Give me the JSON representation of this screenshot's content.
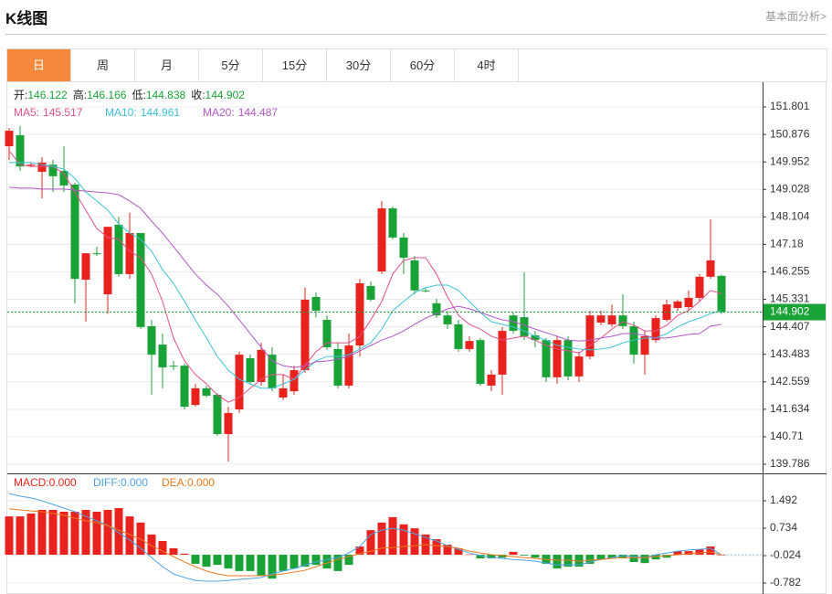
{
  "header": {
    "title": "K线图",
    "link": "基本面分析>"
  },
  "tabs": {
    "items": [
      "日",
      "周",
      "月",
      "5分",
      "15分",
      "30分",
      "60分",
      "4时"
    ],
    "active": 0
  },
  "chart_data": [
    {
      "type": "candlestick",
      "ohlc_labels": [
        "开:",
        "高:",
        "低:",
        "收:"
      ],
      "up_color": "#e8231d",
      "down_color": "#19a337",
      "candles": [
        [
          150.48,
          151.09,
          150.02,
          151.0
        ],
        [
          150.85,
          151.16,
          149.65,
          149.8
        ],
        [
          149.83,
          149.93,
          149.77,
          149.86
        ],
        [
          149.62,
          150.11,
          148.73,
          149.93
        ],
        [
          149.86,
          150.02,
          148.94,
          149.47
        ],
        [
          149.65,
          150.48,
          148.94,
          149.16
        ],
        [
          149.19,
          149.25,
          145.2,
          146.02
        ],
        [
          145.99,
          146.88,
          144.58,
          146.88
        ],
        [
          146.88,
          147.1,
          146.79,
          146.85
        ],
        [
          145.5,
          147.77,
          144.85,
          147.77
        ],
        [
          147.84,
          148.11,
          146.09,
          146.18
        ],
        [
          146.18,
          148.24,
          146.02,
          147.56
        ],
        [
          147.56,
          147.56,
          144.33,
          144.4
        ],
        [
          144.43,
          144.64,
          142.12,
          143.47
        ],
        [
          143.81,
          144.18,
          142.34,
          143.04
        ],
        [
          143.1,
          143.26,
          142.95,
          143.07
        ],
        [
          143.1,
          143.17,
          141.63,
          141.72
        ],
        [
          141.78,
          142.49,
          141.72,
          142.34
        ],
        [
          142.34,
          142.43,
          142.03,
          142.09
        ],
        [
          142.12,
          142.18,
          140.74,
          140.8
        ],
        [
          140.8,
          141.72,
          139.88,
          141.51
        ],
        [
          141.63,
          143.57,
          141.51,
          143.47
        ],
        [
          143.35,
          143.47,
          142.49,
          142.55
        ],
        [
          142.55,
          143.87,
          142.43,
          143.63
        ],
        [
          143.47,
          143.72,
          142.24,
          142.34
        ],
        [
          142.03,
          142.8,
          141.94,
          142.34
        ],
        [
          142.24,
          143.1,
          142.12,
          142.95
        ],
        [
          142.95,
          145.72,
          142.86,
          145.32
        ],
        [
          145.41,
          145.56,
          144.73,
          144.95
        ],
        [
          144.64,
          144.79,
          143.63,
          143.72
        ],
        [
          143.66,
          143.87,
          142.34,
          142.43
        ],
        [
          142.43,
          144.18,
          142.34,
          143.78
        ],
        [
          143.78,
          146.02,
          143.41,
          145.87
        ],
        [
          145.78,
          145.93,
          145.26,
          145.32
        ],
        [
          146.27,
          148.64,
          146.18,
          148.39
        ],
        [
          148.39,
          148.45,
          147.35,
          147.41
        ],
        [
          147.41,
          147.56,
          146.18,
          146.73
        ],
        [
          146.64,
          146.79,
          145.5,
          145.63
        ],
        [
          145.63,
          145.72,
          145.56,
          145.6
        ],
        [
          145.2,
          145.35,
          144.7,
          144.79
        ],
        [
          144.79,
          144.95,
          144.33,
          144.49
        ],
        [
          144.49,
          144.64,
          143.57,
          143.66
        ],
        [
          143.66,
          144.09,
          143.57,
          143.93
        ],
        [
          143.96,
          144.03,
          142.43,
          142.49
        ],
        [
          142.43,
          142.95,
          142.24,
          142.8
        ],
        [
          142.8,
          144.4,
          142.12,
          144.27
        ],
        [
          144.79,
          144.89,
          144.18,
          144.27
        ],
        [
          144.73,
          146.24,
          143.96,
          144.09
        ],
        [
          144.12,
          144.27,
          143.72,
          143.96
        ],
        [
          143.96,
          144.03,
          142.55,
          142.71
        ],
        [
          142.71,
          144.09,
          142.49,
          143.96
        ],
        [
          143.96,
          144.09,
          142.61,
          142.74
        ],
        [
          142.74,
          143.57,
          142.55,
          143.41
        ],
        [
          143.41,
          144.95,
          143.32,
          144.79
        ],
        [
          144.55,
          144.95,
          144.46,
          144.79
        ],
        [
          144.49,
          145.16,
          144.4,
          144.79
        ],
        [
          144.79,
          145.5,
          144.33,
          144.43
        ],
        [
          144.43,
          144.58,
          143.17,
          143.47
        ],
        [
          143.47,
          144.27,
          142.8,
          144.09
        ],
        [
          143.96,
          144.79,
          143.87,
          144.7
        ],
        [
          144.64,
          145.32,
          144.58,
          145.16
        ],
        [
          145.04,
          145.32,
          144.95,
          145.26
        ],
        [
          145.07,
          145.63,
          144.95,
          145.38
        ],
        [
          145.38,
          146.18,
          145.26,
          146.09
        ],
        [
          146.09,
          148.02,
          146.02,
          146.64
        ],
        [
          146.122,
          146.166,
          144.838,
          144.902
        ]
      ],
      "series": [
        {
          "name": "MA5:",
          "color": "#e2508a",
          "values": [
            150.33,
            149.86,
            149.8,
            149.8,
            149.8,
            149.56,
            148.94,
            148.33,
            147.71,
            147.41,
            147.35,
            146.95,
            146.73,
            146.18,
            145.26,
            144.03,
            143.26,
            142.8,
            142.49,
            142.12,
            141.87,
            142.03,
            142.34,
            142.64,
            142.8,
            142.8,
            142.64,
            143.1,
            143.57,
            143.87,
            143.87,
            143.87,
            144.09,
            144.64,
            145.26,
            146.18,
            146.64,
            146.73,
            146.73,
            146.18,
            145.41,
            144.79,
            144.49,
            144.33,
            144.09,
            143.96,
            144.03,
            144.09,
            143.96,
            143.78,
            143.66,
            143.6,
            143.53,
            143.78,
            144.03,
            144.33,
            144.58,
            144.46,
            144.27,
            144.27,
            144.46,
            144.79,
            144.95,
            145.26,
            145.63,
            145.517
          ]
        },
        {
          "name": "MA10:",
          "color": "#3cc1d6",
          "values": [
            149.93,
            149.93,
            149.93,
            149.86,
            149.8,
            149.71,
            149.4,
            148.94,
            148.64,
            148.33,
            147.87,
            147.56,
            147.35,
            146.95,
            146.33,
            145.87,
            145.26,
            144.64,
            144.03,
            143.41,
            142.95,
            142.64,
            142.49,
            142.34,
            142.34,
            142.49,
            142.64,
            142.95,
            143.26,
            143.41,
            143.41,
            143.47,
            143.66,
            143.87,
            144.33,
            144.95,
            145.26,
            145.56,
            145.72,
            145.81,
            145.81,
            145.63,
            145.26,
            144.89,
            144.58,
            144.49,
            144.4,
            144.27,
            144.09,
            143.96,
            143.78,
            143.72,
            143.66,
            143.63,
            143.66,
            143.72,
            143.87,
            143.96,
            144.03,
            144.03,
            144.18,
            144.4,
            144.58,
            144.7,
            144.85,
            144.961
          ]
        },
        {
          "name": "MA20:",
          "color": "#b056c6",
          "values": [
            149.1,
            149.07,
            149.07,
            149.04,
            149.04,
            149.04,
            149.0,
            148.97,
            148.94,
            148.91,
            148.85,
            148.64,
            148.39,
            147.96,
            147.56,
            147.1,
            146.64,
            146.18,
            145.81,
            145.5,
            145.1,
            144.64,
            144.18,
            143.72,
            143.26,
            143.1,
            143.04,
            143.1,
            143.23,
            143.26,
            143.32,
            143.41,
            143.6,
            143.78,
            143.96,
            144.09,
            144.27,
            144.49,
            144.7,
            144.85,
            145.01,
            145.1,
            145.01,
            144.89,
            144.76,
            144.64,
            144.58,
            144.46,
            144.33,
            144.21,
            144.09,
            143.96,
            143.93,
            143.96,
            144.03,
            144.09,
            144.18,
            144.18,
            144.12,
            144.03,
            144.03,
            144.09,
            144.15,
            144.18,
            144.43,
            144.487
          ]
        }
      ],
      "ylim": [
        139.479,
        152.631
      ],
      "yticks": [
        139.786,
        140.71,
        141.634,
        142.559,
        143.483,
        144.407,
        145.331,
        146.255,
        147.18,
        148.104,
        149.028,
        149.952,
        150.876,
        151.801
      ],
      "grid": true,
      "last_price_line": true
    },
    {
      "type": "macd",
      "up_color": "#e8231d",
      "down_color": "#19a337",
      "series": [
        {
          "name": "MACD:",
          "style": "bar",
          "color": "#e8231d",
          "current": "0.000",
          "values": [
            1.06,
            1.06,
            1.14,
            1.24,
            1.24,
            1.19,
            1.19,
            1.24,
            1.19,
            1.24,
            1.29,
            1.06,
            0.89,
            0.56,
            0.38,
            0.18,
            0.03,
            -0.25,
            -0.33,
            -0.28,
            -0.38,
            -0.45,
            -0.45,
            -0.58,
            -0.66,
            -0.45,
            -0.38,
            -0.33,
            -0.28,
            -0.38,
            -0.45,
            -0.28,
            0.23,
            0.68,
            0.89,
            1.04,
            0.84,
            0.73,
            0.56,
            0.43,
            0.28,
            0.18,
            0.01,
            -0.1,
            -0.1,
            -0.08,
            0.08,
            -0.02,
            -0.08,
            -0.25,
            -0.38,
            -0.33,
            -0.33,
            -0.25,
            -0.13,
            -0.1,
            -0.1,
            -0.2,
            -0.23,
            -0.13,
            -0.08,
            0.1,
            0.1,
            0.15,
            0.23,
            0
          ]
        },
        {
          "name": "DIFF:",
          "style": "line",
          "color": "#4da3e6",
          "current": "0.000",
          "values": [
            1.69,
            1.62,
            1.57,
            1.49,
            1.39,
            1.29,
            1.19,
            1.06,
            0.94,
            0.81,
            0.61,
            0.41,
            0.18,
            -0.08,
            -0.33,
            -0.53,
            -0.63,
            -0.71,
            -0.73,
            -0.73,
            -0.71,
            -0.68,
            -0.66,
            -0.63,
            -0.53,
            -0.45,
            -0.38,
            -0.28,
            -0.2,
            -0.13,
            -0.08,
            0.05,
            0.23,
            0.56,
            0.68,
            0.73,
            0.68,
            0.58,
            0.48,
            0.38,
            0.25,
            0.15,
            0.05,
            -0.02,
            -0.08,
            -0.1,
            -0.13,
            -0.15,
            -0.18,
            -0.23,
            -0.28,
            -0.28,
            -0.28,
            -0.2,
            -0.13,
            -0.08,
            -0.02,
            -0.05,
            -0.08,
            0.0,
            0.05,
            0.1,
            0.13,
            0.15,
            0.18,
            0
          ]
        },
        {
          "name": "DEA:",
          "style": "line",
          "color": "#f07a1e",
          "current": "0.000",
          "values": [
            1.27,
            1.24,
            1.21,
            1.19,
            1.14,
            1.09,
            1.01,
            0.94,
            0.89,
            0.81,
            0.68,
            0.56,
            0.43,
            0.25,
            0.1,
            -0.05,
            -0.2,
            -0.33,
            -0.45,
            -0.53,
            -0.58,
            -0.58,
            -0.58,
            -0.58,
            -0.56,
            -0.53,
            -0.48,
            -0.43,
            -0.33,
            -0.23,
            -0.13,
            -0.05,
            0.03,
            0.1,
            0.18,
            0.2,
            0.23,
            0.25,
            0.28,
            0.25,
            0.23,
            0.18,
            0.1,
            0.05,
            0.0,
            -0.02,
            -0.05,
            -0.08,
            -0.1,
            -0.13,
            -0.15,
            -0.15,
            -0.18,
            -0.15,
            -0.13,
            -0.1,
            -0.08,
            -0.08,
            -0.08,
            -0.05,
            -0.02,
            0.0,
            0.03,
            0.05,
            0.08,
            0
          ]
        }
      ],
      "ylim": [
        -1.085,
        2.199
      ],
      "yticks": [
        -0.782,
        -0.024,
        0.734,
        1.492
      ],
      "grid": true
    }
  ]
}
